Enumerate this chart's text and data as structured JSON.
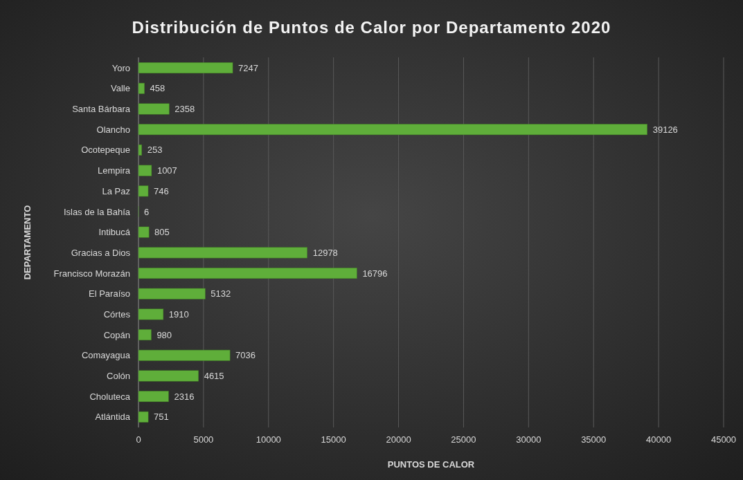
{
  "chart_data": {
    "type": "bar",
    "orientation": "horizontal",
    "title": "Distribución de Puntos de Calor por Departamento 2020",
    "xlabel": "PUNTOS DE CALOR",
    "ylabel": "DEPARTAMENTO",
    "categories": [
      "Yoro",
      "Valle",
      "Santa Bárbara",
      "Olancho",
      "Ocotepeque",
      "Lempira",
      "La Paz",
      "Islas de la Bahía",
      "Intibucá",
      "Gracias a Dios",
      "Francisco Morazán",
      "El Paraíso",
      "Córtes",
      "Copán",
      "Comayagua",
      "Colón",
      "Choluteca",
      "Atlántida"
    ],
    "values": [
      7247,
      458,
      2358,
      39126,
      253,
      1007,
      746,
      6,
      805,
      12978,
      16796,
      5132,
      1910,
      980,
      7036,
      4615,
      2316,
      751
    ],
    "color": "#5fae3a",
    "xlim": [
      0,
      45000
    ],
    "xticks": [
      0,
      5000,
      10000,
      15000,
      20000,
      25000,
      30000,
      35000,
      40000,
      45000
    ],
    "grid": "x",
    "data_labels": true
  }
}
